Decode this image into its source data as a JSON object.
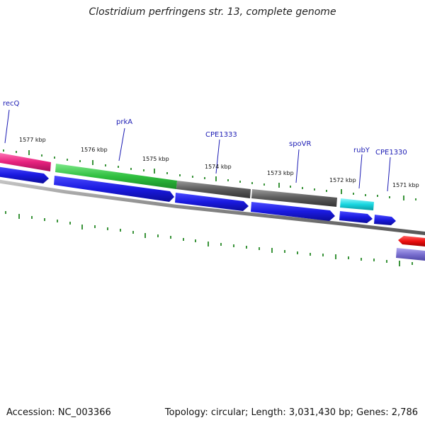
{
  "title": "Clostridium perfringens str. 13, complete genome",
  "accession": "Accession: NC_003366",
  "summary": "Topology: circular; Length: 3,031,430 bp; Genes: 2,786",
  "kbp_labels": [
    "1577 kbp",
    "1576 kbp",
    "1575 kbp",
    "1574 kbp",
    "1573 kbp",
    "1572 kbp",
    "1571 kbp"
  ],
  "genes": [
    {
      "label": "recQ",
      "color": "#e8237f"
    },
    {
      "label": "prkA",
      "color": "#2fbf3f"
    },
    {
      "label": "CPE1333",
      "color": "#5a5a5a"
    },
    {
      "label": "spoVR",
      "color": "#5a5a5a"
    },
    {
      "label": "rubY",
      "color": "#19d6e0"
    },
    {
      "label": "CPE1330",
      "color": "#1a1ae0"
    }
  ],
  "colors": {
    "cds_strand": "#1a1ae0",
    "tick": "#0a7a0a",
    "backbone": "#888888",
    "red_feature": "#ee1010",
    "purple_feature": "#7a70d0"
  }
}
